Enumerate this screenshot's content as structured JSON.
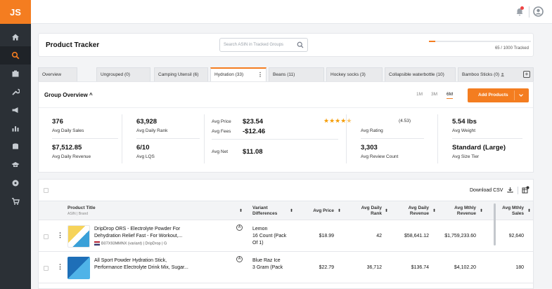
{
  "app": {
    "logo": "JS"
  },
  "sidebar": {
    "icons": [
      "home-icon",
      "search-icon",
      "box-icon",
      "wrench-icon",
      "megaphone-icon",
      "chart-icon",
      "database-icon",
      "graduation-icon",
      "puzzle-icon",
      "cart-icon"
    ],
    "active": "search-icon"
  },
  "header": {
    "title": "Product Tracker",
    "search_placeholder": "Search ASIN in Tracked Groups",
    "tracked_text": "65 / 1000 Tracked",
    "tracked_fraction": 0.065
  },
  "tabs": [
    {
      "label": "Overview"
    },
    {
      "label": "Ungrouped (0)"
    },
    {
      "label": "Camping Utensil (6)"
    },
    {
      "label": "Hydration (33)",
      "active": true
    },
    {
      "label": "Beans (11)"
    },
    {
      "label": "Hockey socks (3)"
    },
    {
      "label": "Collapsible waterbottle (10)"
    },
    {
      "label": "Bamboo Sticks (0)"
    }
  ],
  "overview": {
    "title": "Group Overview",
    "periods": [
      "1M",
      "3M",
      "6M"
    ],
    "active_period": "6M",
    "add_button": "Add Products",
    "stats": {
      "avg_daily_sales": {
        "value": "376",
        "label": "Avg Daily Sales"
      },
      "avg_daily_revenue": {
        "value": "$7,512.85",
        "label": "Avg Daily Revenue"
      },
      "avg_daily_rank": {
        "value": "63,928",
        "label": "Avg Daily Rank"
      },
      "avg_lqs": {
        "value": "6/10",
        "label": "Avg LQS"
      },
      "avg_price": {
        "label": "Avg Price",
        "value": "$23.54"
      },
      "avg_fees": {
        "label": "Avg Fees",
        "value": "-$12.46"
      },
      "avg_net": {
        "label": "Avg Net",
        "value": "$11.08"
      },
      "avg_rating": {
        "value": "(4.53)",
        "label": "Avg Rating",
        "stars": 4.5
      },
      "avg_review_count": {
        "value": "3,303",
        "label": "Avg Review Count"
      },
      "avg_weight": {
        "value": "5.54 lbs",
        "label": "Avg Weight"
      },
      "avg_size_tier": {
        "value": "Standard (Large)",
        "label": "Avg Size Tier"
      }
    }
  },
  "table": {
    "download_label": "Download CSV",
    "columns": {
      "product_title": "Product Title",
      "product_sub": "ASIN | Brand",
      "variant_1": "Variant",
      "variant_2": "Differences",
      "avg_price": "Avg Price",
      "daily_rank_1": "Avg Daily",
      "daily_rank_2": "Rank",
      "daily_rev_1": "Avg Daily",
      "daily_rev_2": "Revenue",
      "mthly_rev_1": "Avg Mthly",
      "mthly_rev_2": "Revenue",
      "mthly_sales_1": "Avg Mthly",
      "mthly_sales_2": "Sales"
    },
    "rows": [
      {
        "title_1": "DripDrop ORS - Electrolyte Powder For",
        "title_2": "Dehydration Relief Fast - For Workout,...",
        "meta": "B07X93MMNX (variant) | DripDrop | G",
        "variant_1": "Lemon",
        "variant_2": "16 Count (Pack",
        "variant_3": "Of 1)",
        "price": "$18.99",
        "rank": "42",
        "daily_revenue": "$58,641.12",
        "mthly_revenue": "$1,759,233.60",
        "mthly_sales": "92,640"
      },
      {
        "title_1": "All Sport Powder Hydration Stick,",
        "title_2": "Performance Electrolyte Drink Mix, Sugar...",
        "variant_1": "Blue Raz Ice",
        "variant_2": "3 Gram (Pack",
        "price": "$22.79",
        "rank": "36,712",
        "daily_revenue": "$136.74",
        "mthly_revenue": "$4,102.20",
        "mthly_sales": "180"
      }
    ]
  }
}
